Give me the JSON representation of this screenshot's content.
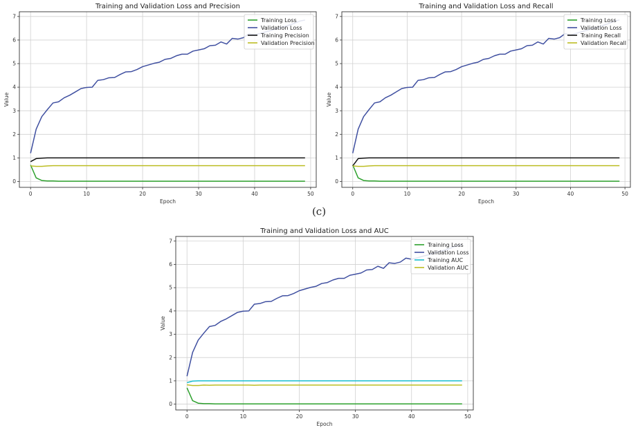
{
  "caption": "(c)",
  "chart_data": [
    {
      "type": "line",
      "title": "Training and Validation Loss and Precision",
      "xlabel": "Epoch",
      "ylabel": "Value",
      "xlim": [
        -2,
        51
      ],
      "ylim": [
        -0.25,
        7.2
      ],
      "xticks": [
        0,
        10,
        20,
        30,
        40,
        50
      ],
      "yticks": [
        0,
        1,
        2,
        3,
        4,
        5,
        6,
        7
      ],
      "grid": true,
      "legend_position": "top-right",
      "x": [
        0,
        1,
        2,
        3,
        4,
        5,
        6,
        7,
        8,
        9,
        10,
        11,
        12,
        13,
        14,
        15,
        16,
        17,
        18,
        19,
        20,
        21,
        22,
        23,
        24,
        25,
        26,
        27,
        28,
        29,
        30,
        31,
        32,
        33,
        34,
        35,
        36,
        37,
        38,
        39,
        40,
        41,
        42,
        43,
        44,
        45,
        46,
        47,
        48,
        49
      ],
      "series": [
        {
          "name": "Training Loss",
          "color": "#2ca02c",
          "values": [
            0.7,
            0.15,
            0.04,
            0.02,
            0.02,
            0.01,
            0.01,
            0.01,
            0.01,
            0.01,
            0.01,
            0.01,
            0.01,
            0.01,
            0.01,
            0.01,
            0.01,
            0.01,
            0.01,
            0.01,
            0.01,
            0.01,
            0.01,
            0.01,
            0.01,
            0.01,
            0.01,
            0.01,
            0.01,
            0.01,
            0.01,
            0.01,
            0.01,
            0.01,
            0.01,
            0.01,
            0.01,
            0.01,
            0.01,
            0.01,
            0.01,
            0.01,
            0.01,
            0.01,
            0.01,
            0.01,
            0.01,
            0.01,
            0.01,
            0.01
          ]
        },
        {
          "name": "Validation Loss",
          "color": "#3f4fa0",
          "values": [
            1.2,
            2.22,
            2.75,
            3.05,
            3.33,
            3.38,
            3.55,
            3.66,
            3.8,
            3.94,
            3.99,
            4.0,
            4.29,
            4.32,
            4.4,
            4.41,
            4.54,
            4.65,
            4.66,
            4.75,
            4.87,
            4.94,
            5.01,
            5.06,
            5.18,
            5.22,
            5.33,
            5.4,
            5.4,
            5.53,
            5.58,
            5.63,
            5.76,
            5.78,
            5.92,
            5.83,
            6.07,
            6.04,
            6.1,
            6.27,
            6.22,
            6.28,
            6.35,
            6.41,
            6.49,
            6.55,
            6.62,
            6.7,
            6.8,
            6.85
          ]
        },
        {
          "name": "Training Precision",
          "color": "#111111",
          "values": [
            0.84,
            0.97,
            0.99,
            1.0,
            1.0,
            1.0,
            1.0,
            1.0,
            1.0,
            1.0,
            1.0,
            1.0,
            1.0,
            1.0,
            1.0,
            1.0,
            1.0,
            1.0,
            1.0,
            1.0,
            1.0,
            1.0,
            1.0,
            1.0,
            1.0,
            1.0,
            1.0,
            1.0,
            1.0,
            1.0,
            1.0,
            1.0,
            1.0,
            1.0,
            1.0,
            1.0,
            1.0,
            1.0,
            1.0,
            1.0,
            1.0,
            1.0,
            1.0,
            1.0,
            1.0,
            1.0,
            1.0,
            1.0,
            1.0,
            1.0
          ]
        },
        {
          "name": "Validation Precision",
          "color": "#bcbd22",
          "values": [
            0.66,
            0.64,
            0.64,
            0.66,
            0.67,
            0.67,
            0.67,
            0.67,
            0.67,
            0.67,
            0.67,
            0.67,
            0.67,
            0.67,
            0.67,
            0.67,
            0.67,
            0.67,
            0.67,
            0.67,
            0.67,
            0.67,
            0.67,
            0.67,
            0.67,
            0.67,
            0.67,
            0.67,
            0.67,
            0.67,
            0.67,
            0.67,
            0.67,
            0.67,
            0.67,
            0.67,
            0.67,
            0.67,
            0.67,
            0.67,
            0.67,
            0.67,
            0.67,
            0.67,
            0.67,
            0.67,
            0.67,
            0.67,
            0.67,
            0.67
          ]
        }
      ]
    },
    {
      "type": "line",
      "title": "Training and Validation Loss and Recall",
      "xlabel": "Epoch",
      "ylabel": "Value",
      "xlim": [
        -2,
        51
      ],
      "ylim": [
        -0.25,
        7.2
      ],
      "xticks": [
        0,
        10,
        20,
        30,
        40,
        50
      ],
      "yticks": [
        0,
        1,
        2,
        3,
        4,
        5,
        6,
        7
      ],
      "grid": true,
      "legend_position": "top-right",
      "x": [
        0,
        1,
        2,
        3,
        4,
        5,
        6,
        7,
        8,
        9,
        10,
        11,
        12,
        13,
        14,
        15,
        16,
        17,
        18,
        19,
        20,
        21,
        22,
        23,
        24,
        25,
        26,
        27,
        28,
        29,
        30,
        31,
        32,
        33,
        34,
        35,
        36,
        37,
        38,
        39,
        40,
        41,
        42,
        43,
        44,
        45,
        46,
        47,
        48,
        49
      ],
      "series": [
        {
          "name": "Training Loss",
          "color": "#2ca02c",
          "values": [
            0.7,
            0.15,
            0.04,
            0.02,
            0.02,
            0.01,
            0.01,
            0.01,
            0.01,
            0.01,
            0.01,
            0.01,
            0.01,
            0.01,
            0.01,
            0.01,
            0.01,
            0.01,
            0.01,
            0.01,
            0.01,
            0.01,
            0.01,
            0.01,
            0.01,
            0.01,
            0.01,
            0.01,
            0.01,
            0.01,
            0.01,
            0.01,
            0.01,
            0.01,
            0.01,
            0.01,
            0.01,
            0.01,
            0.01,
            0.01,
            0.01,
            0.01,
            0.01,
            0.01,
            0.01,
            0.01,
            0.01,
            0.01,
            0.01,
            0.01
          ]
        },
        {
          "name": "Validation Loss",
          "color": "#3f4fa0",
          "values": [
            1.2,
            2.22,
            2.75,
            3.05,
            3.33,
            3.38,
            3.55,
            3.66,
            3.8,
            3.94,
            3.99,
            4.0,
            4.29,
            4.32,
            4.4,
            4.41,
            4.54,
            4.65,
            4.66,
            4.75,
            4.87,
            4.94,
            5.01,
            5.06,
            5.18,
            5.22,
            5.33,
            5.4,
            5.4,
            5.53,
            5.58,
            5.63,
            5.76,
            5.78,
            5.92,
            5.83,
            6.07,
            6.04,
            6.1,
            6.27,
            6.22,
            6.28,
            6.35,
            6.41,
            6.49,
            6.55,
            6.62,
            6.7,
            6.8,
            6.85
          ]
        },
        {
          "name": "Training Recall",
          "color": "#111111",
          "values": [
            0.66,
            0.97,
            0.99,
            1.0,
            1.0,
            1.0,
            1.0,
            1.0,
            1.0,
            1.0,
            1.0,
            1.0,
            1.0,
            1.0,
            1.0,
            1.0,
            1.0,
            1.0,
            1.0,
            1.0,
            1.0,
            1.0,
            1.0,
            1.0,
            1.0,
            1.0,
            1.0,
            1.0,
            1.0,
            1.0,
            1.0,
            1.0,
            1.0,
            1.0,
            1.0,
            1.0,
            1.0,
            1.0,
            1.0,
            1.0,
            1.0,
            1.0,
            1.0,
            1.0,
            1.0,
            1.0,
            1.0,
            1.0,
            1.0,
            1.0
          ]
        },
        {
          "name": "Validation Recall",
          "color": "#bcbd22",
          "values": [
            0.66,
            0.64,
            0.64,
            0.66,
            0.67,
            0.67,
            0.67,
            0.67,
            0.67,
            0.67,
            0.67,
            0.67,
            0.67,
            0.67,
            0.67,
            0.67,
            0.67,
            0.67,
            0.67,
            0.67,
            0.67,
            0.67,
            0.67,
            0.67,
            0.67,
            0.67,
            0.67,
            0.67,
            0.67,
            0.67,
            0.67,
            0.67,
            0.67,
            0.67,
            0.67,
            0.67,
            0.67,
            0.67,
            0.67,
            0.67,
            0.67,
            0.67,
            0.67,
            0.67,
            0.67,
            0.67,
            0.67,
            0.67,
            0.67,
            0.67
          ]
        }
      ]
    },
    {
      "type": "line",
      "title": "Training and Validation Loss and AUC",
      "xlabel": "Epoch",
      "ylabel": "Value",
      "xlim": [
        -2,
        51
      ],
      "ylim": [
        -0.25,
        7.2
      ],
      "xticks": [
        0,
        10,
        20,
        30,
        40,
        50
      ],
      "yticks": [
        0,
        1,
        2,
        3,
        4,
        5,
        6,
        7
      ],
      "grid": true,
      "legend_position": "top-right",
      "x": [
        0,
        1,
        2,
        3,
        4,
        5,
        6,
        7,
        8,
        9,
        10,
        11,
        12,
        13,
        14,
        15,
        16,
        17,
        18,
        19,
        20,
        21,
        22,
        23,
        24,
        25,
        26,
        27,
        28,
        29,
        30,
        31,
        32,
        33,
        34,
        35,
        36,
        37,
        38,
        39,
        40,
        41,
        42,
        43,
        44,
        45,
        46,
        47,
        48,
        49
      ],
      "series": [
        {
          "name": "Training Loss",
          "color": "#2ca02c",
          "values": [
            0.7,
            0.15,
            0.04,
            0.02,
            0.02,
            0.01,
            0.01,
            0.01,
            0.01,
            0.01,
            0.01,
            0.01,
            0.01,
            0.01,
            0.01,
            0.01,
            0.01,
            0.01,
            0.01,
            0.01,
            0.01,
            0.01,
            0.01,
            0.01,
            0.01,
            0.01,
            0.01,
            0.01,
            0.01,
            0.01,
            0.01,
            0.01,
            0.01,
            0.01,
            0.01,
            0.01,
            0.01,
            0.01,
            0.01,
            0.01,
            0.01,
            0.01,
            0.01,
            0.01,
            0.01,
            0.01,
            0.01,
            0.01,
            0.01,
            0.01
          ]
        },
        {
          "name": "Validation Loss",
          "color": "#3f4fa0",
          "values": [
            1.2,
            2.22,
            2.75,
            3.05,
            3.33,
            3.38,
            3.55,
            3.66,
            3.8,
            3.94,
            3.99,
            4.0,
            4.29,
            4.32,
            4.4,
            4.41,
            4.54,
            4.65,
            4.66,
            4.75,
            4.87,
            4.94,
            5.01,
            5.06,
            5.18,
            5.22,
            5.33,
            5.4,
            5.4,
            5.53,
            5.58,
            5.63,
            5.76,
            5.78,
            5.92,
            5.83,
            6.07,
            6.04,
            6.1,
            6.27,
            6.22,
            6.28,
            6.35,
            6.41,
            6.49,
            6.55,
            6.62,
            6.7,
            6.8,
            6.85
          ]
        },
        {
          "name": "Training AUC",
          "color": "#17becf",
          "values": [
            0.92,
            0.99,
            1.0,
            1.0,
            1.0,
            1.0,
            1.0,
            1.0,
            1.0,
            1.0,
            1.0,
            1.0,
            1.0,
            1.0,
            1.0,
            1.0,
            1.0,
            1.0,
            1.0,
            1.0,
            1.0,
            1.0,
            1.0,
            1.0,
            1.0,
            1.0,
            1.0,
            1.0,
            1.0,
            1.0,
            1.0,
            1.0,
            1.0,
            1.0,
            1.0,
            1.0,
            1.0,
            1.0,
            1.0,
            1.0,
            1.0,
            1.0,
            1.0,
            1.0,
            1.0,
            1.0,
            1.0,
            1.0,
            1.0,
            1.0
          ]
        },
        {
          "name": "Validation AUC",
          "color": "#bcbd22",
          "values": [
            0.83,
            0.8,
            0.8,
            0.82,
            0.81,
            0.82,
            0.82,
            0.82,
            0.82,
            0.82,
            0.82,
            0.82,
            0.81,
            0.82,
            0.82,
            0.82,
            0.82,
            0.82,
            0.82,
            0.82,
            0.82,
            0.82,
            0.82,
            0.82,
            0.82,
            0.82,
            0.82,
            0.82,
            0.82,
            0.82,
            0.82,
            0.82,
            0.82,
            0.82,
            0.82,
            0.82,
            0.82,
            0.82,
            0.82,
            0.82,
            0.82,
            0.82,
            0.82,
            0.82,
            0.82,
            0.82,
            0.82,
            0.82,
            0.82,
            0.82
          ]
        }
      ]
    }
  ]
}
